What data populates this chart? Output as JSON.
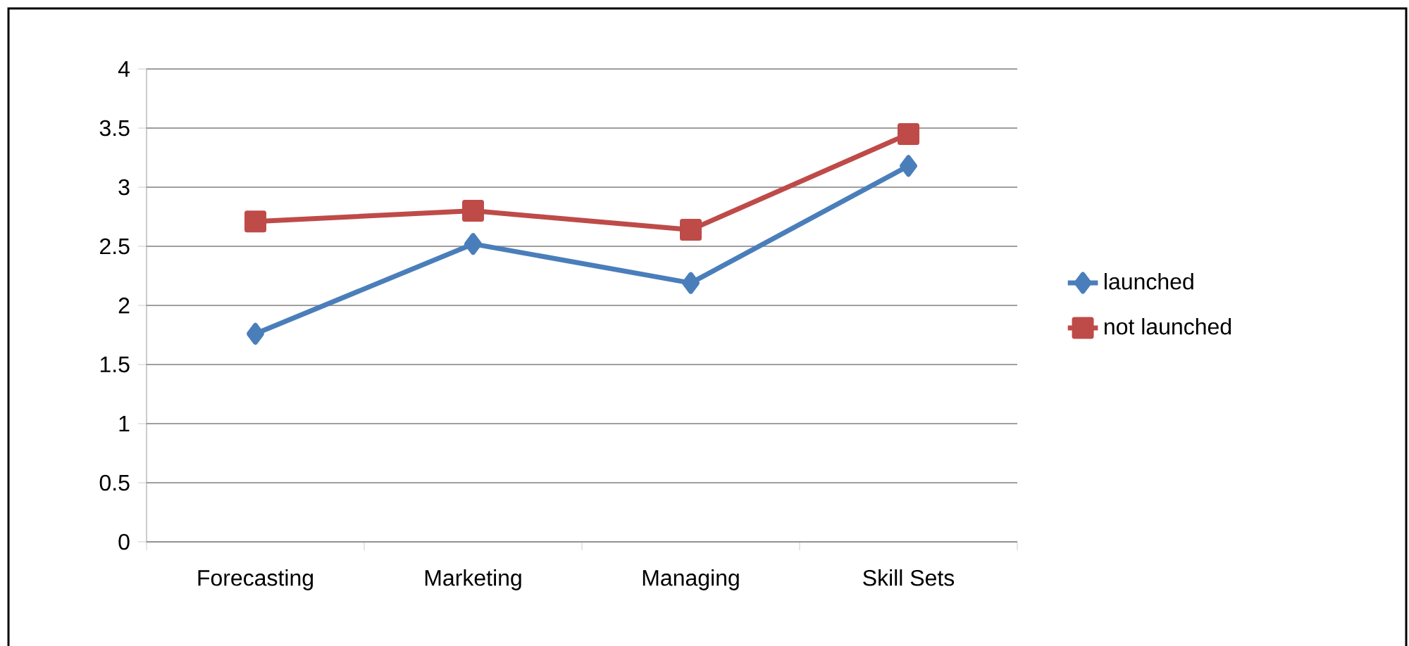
{
  "chart_data": {
    "type": "line",
    "categories": [
      "Forecasting",
      "Marketing",
      "Managing",
      "Skill Sets"
    ],
    "series": [
      {
        "name": "launched",
        "color": "#4a7ebb",
        "marker": "diamond",
        "values": [
          1.76,
          2.52,
          2.19,
          3.18
        ]
      },
      {
        "name": "not launched",
        "color": "#be4b48",
        "marker": "square",
        "values": [
          2.71,
          2.8,
          2.64,
          3.45
        ]
      }
    ],
    "ylim": [
      0,
      4
    ],
    "yticks": [
      0,
      0.5,
      1,
      1.5,
      2,
      2.5,
      3,
      3.5,
      4
    ],
    "grid": "y",
    "legend": "right"
  }
}
